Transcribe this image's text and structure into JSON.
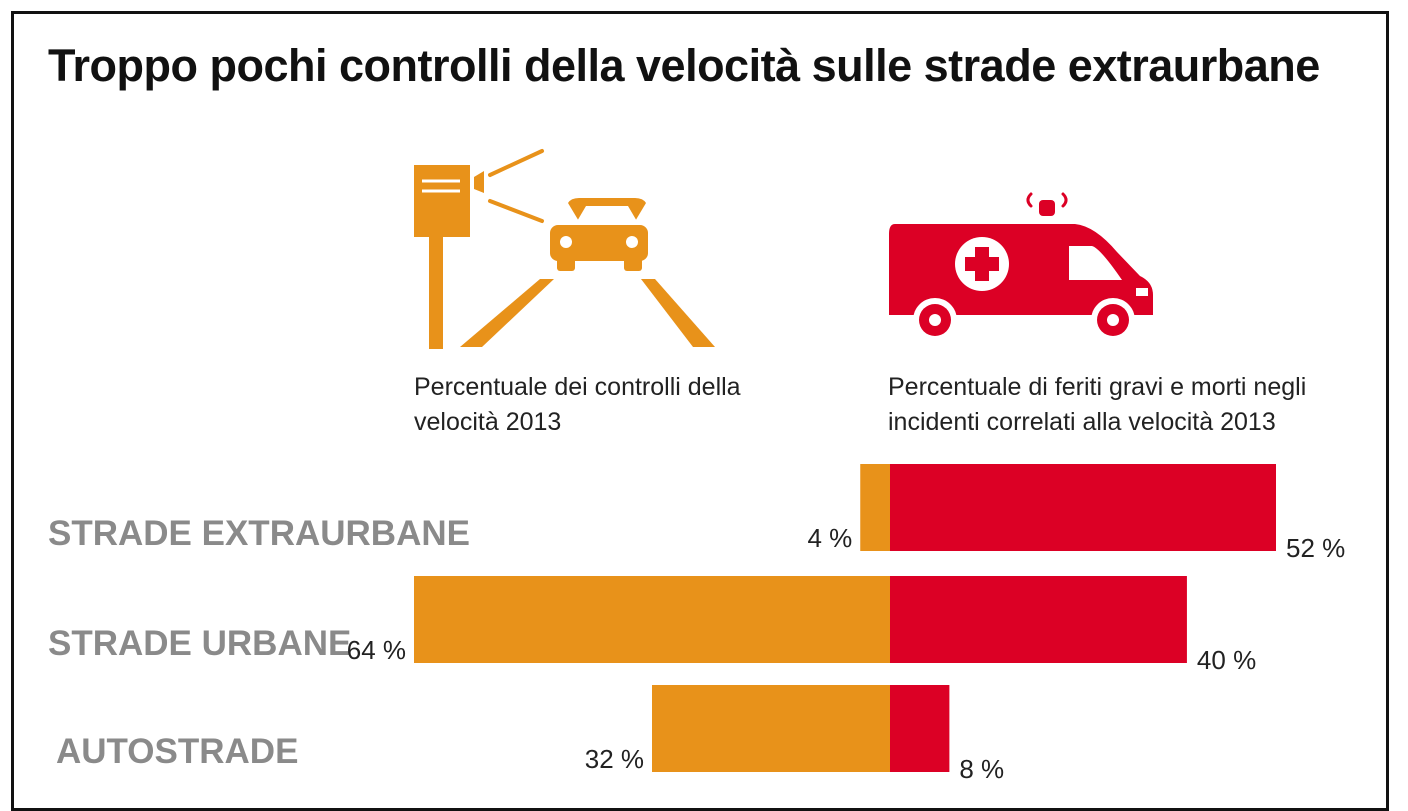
{
  "title": "Troppo pochi controlli della velocità sulle strade extraurbane",
  "legend": {
    "left_text": "Percentuale dei controlli della velocità 2013",
    "right_text": "Percentuale di feriti gravi e morti negli incidenti correlati alla velocità 2013",
    "left_icon": "speed-camera-car-icon",
    "right_icon": "ambulance-icon"
  },
  "colors": {
    "controls": "#E8921A",
    "casualties": "#DC0025",
    "category_text": "#8a8a8a"
  },
  "chart_data": {
    "type": "bar",
    "orientation": "horizontal-diverging",
    "categories": [
      "STRADE EXTRAURBANE",
      "STRADE URBANE",
      "AUTOSTRADE"
    ],
    "series": [
      {
        "values": [
          4,
          64,
          32
        ],
        "labels": [
          "4 %",
          "64 %",
          "32 %"
        ]
      },
      {
        "values": [
          52,
          40,
          8
        ],
        "labels": [
          "52 %",
          "40 %",
          "8 %"
        ]
      }
    ],
    "unit": "%"
  }
}
